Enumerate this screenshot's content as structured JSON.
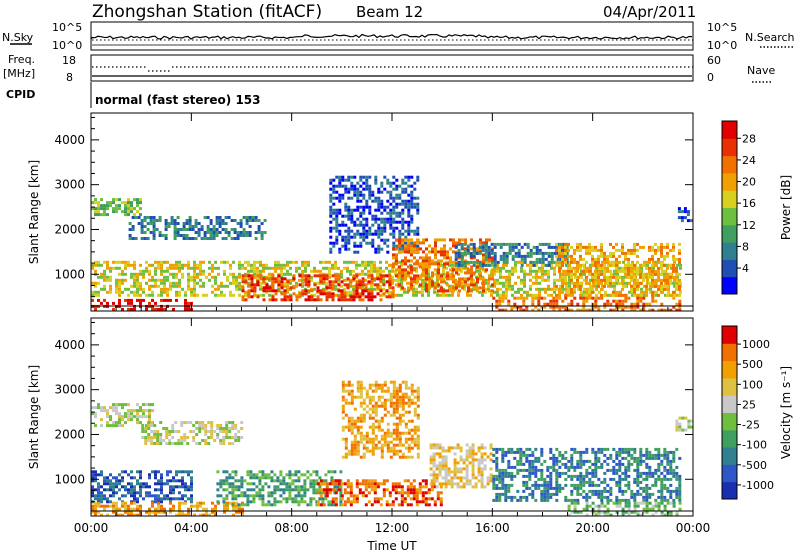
{
  "header": {
    "station": "Zhongshan Station (fitACF)",
    "beam": "Beam 12",
    "date": "04/Apr/2011"
  },
  "strips": {
    "nsky_label": "N.Sky",
    "nsearch_label": "N.Search",
    "freq_label_1": "Freq.",
    "freq_label_2": "[MHz]",
    "nave_label": "Nave",
    "cpid_label": "CPID",
    "cpid_text": "normal (fast stereo) 153",
    "noise_ticks_left": [
      "10^5",
      "10^0"
    ],
    "noise_ticks_right": [
      "10^5",
      "10^0"
    ],
    "freq_ticks": [
      "18",
      "8"
    ],
    "nave_ticks": [
      "60",
      "0"
    ]
  },
  "chart_data": [
    {
      "type": "heatmap",
      "name": "power",
      "ylabel": "Slant Range [km]",
      "xlabel": "Time UT",
      "x_ticks": [
        "00:00",
        "04:00",
        "08:00",
        "12:00",
        "16:00",
        "20:00",
        "00:00"
      ],
      "y_ticks": [
        1000,
        2000,
        3000,
        4000
      ],
      "ylim": [
        180,
        4600
      ],
      "xlim_hours": [
        0,
        24
      ],
      "colorbar": {
        "label": "Power [dB]",
        "ticks": [
          "4",
          "8",
          "12",
          "16",
          "20",
          "24",
          "28"
        ],
        "colors": [
          "#0000ff",
          "#1f4fb4",
          "#2f7f8f",
          "#3f9f5f",
          "#6fbf3f",
          "#d8d020",
          "#f0a000",
          "#f07000",
          "#e83000",
          "#e00000"
        ]
      },
      "regions": [
        {
          "t0": 0.0,
          "t1": 4.0,
          "r0": 200,
          "r1": 450,
          "level": 9
        },
        {
          "t0": 0.0,
          "t1": 23.5,
          "r0": 500,
          "r1": 1300,
          "level": 5
        },
        {
          "t0": 0.0,
          "t1": 2.0,
          "r0": 2300,
          "r1": 2700,
          "level": 4
        },
        {
          "t0": 1.5,
          "t1": 7.0,
          "r0": 1800,
          "r1": 2300,
          "level": 2
        },
        {
          "t0": 6.0,
          "t1": 12.0,
          "r0": 400,
          "r1": 1000,
          "level": 8
        },
        {
          "t0": 9.5,
          "t1": 13.0,
          "r0": 1500,
          "r1": 3200,
          "level": 1
        },
        {
          "t0": 12.0,
          "t1": 16.0,
          "r0": 600,
          "r1": 1800,
          "level": 7
        },
        {
          "t0": 14.5,
          "t1": 19.0,
          "r0": 1200,
          "r1": 1700,
          "level": 2
        },
        {
          "t0": 18.5,
          "t1": 23.5,
          "r0": 500,
          "r1": 1700,
          "level": 6
        },
        {
          "t0": 16.0,
          "t1": 23.5,
          "r0": 200,
          "r1": 500,
          "level": 7
        },
        {
          "t0": 23.4,
          "t1": 24.0,
          "r0": 2200,
          "r1": 2500,
          "level": 1
        }
      ]
    },
    {
      "type": "heatmap",
      "name": "velocity",
      "ylabel": "Slant Range [km]",
      "xlabel": "Time UT",
      "x_ticks": [
        "00:00",
        "04:00",
        "08:00",
        "12:00",
        "16:00",
        "20:00",
        "00:00"
      ],
      "y_ticks": [
        1000,
        2000,
        3000,
        4000
      ],
      "ylim": [
        180,
        4600
      ],
      "xlim_hours": [
        0,
        24
      ],
      "colorbar": {
        "label": "Velocity [m s⁻¹]",
        "ticks": [
          "1000",
          "500",
          "100",
          "25",
          "-25",
          "-100",
          "-500",
          "-1000"
        ],
        "colors": [
          "#1a2fb0",
          "#2d56c8",
          "#2f7f8f",
          "#3f9f5f",
          "#6fbf3f",
          "#c8c8c8",
          "#e0c040",
          "#f0a000",
          "#f07000",
          "#e00000"
        ]
      },
      "regions": [
        {
          "t0": 0.0,
          "t1": 4.0,
          "r0": 500,
          "r1": 1200,
          "level": 1
        },
        {
          "t0": 0.0,
          "t1": 6.0,
          "r0": 200,
          "r1": 500,
          "level": 7
        },
        {
          "t0": 0.0,
          "t1": 2.5,
          "r0": 2200,
          "r1": 2700,
          "level": 5
        },
        {
          "t0": 2.0,
          "t1": 6.0,
          "r0": 1800,
          "r1": 2300,
          "level": 5
        },
        {
          "t0": 5.0,
          "t1": 10.0,
          "r0": 400,
          "r1": 1200,
          "level": 3
        },
        {
          "t0": 10.0,
          "t1": 13.0,
          "r0": 1500,
          "r1": 3200,
          "level": 7
        },
        {
          "t0": 9.0,
          "t1": 14.0,
          "r0": 400,
          "r1": 1000,
          "level": 8
        },
        {
          "t0": 13.5,
          "t1": 16.0,
          "r0": 800,
          "r1": 1800,
          "level": 6
        },
        {
          "t0": 16.0,
          "t1": 23.5,
          "r0": 500,
          "r1": 1700,
          "level": 2
        },
        {
          "t0": 19.0,
          "t1": 23.5,
          "r0": 200,
          "r1": 500,
          "level": 4
        },
        {
          "t0": 23.3,
          "t1": 24.0,
          "r0": 2100,
          "r1": 2400,
          "level": 5
        }
      ]
    }
  ]
}
